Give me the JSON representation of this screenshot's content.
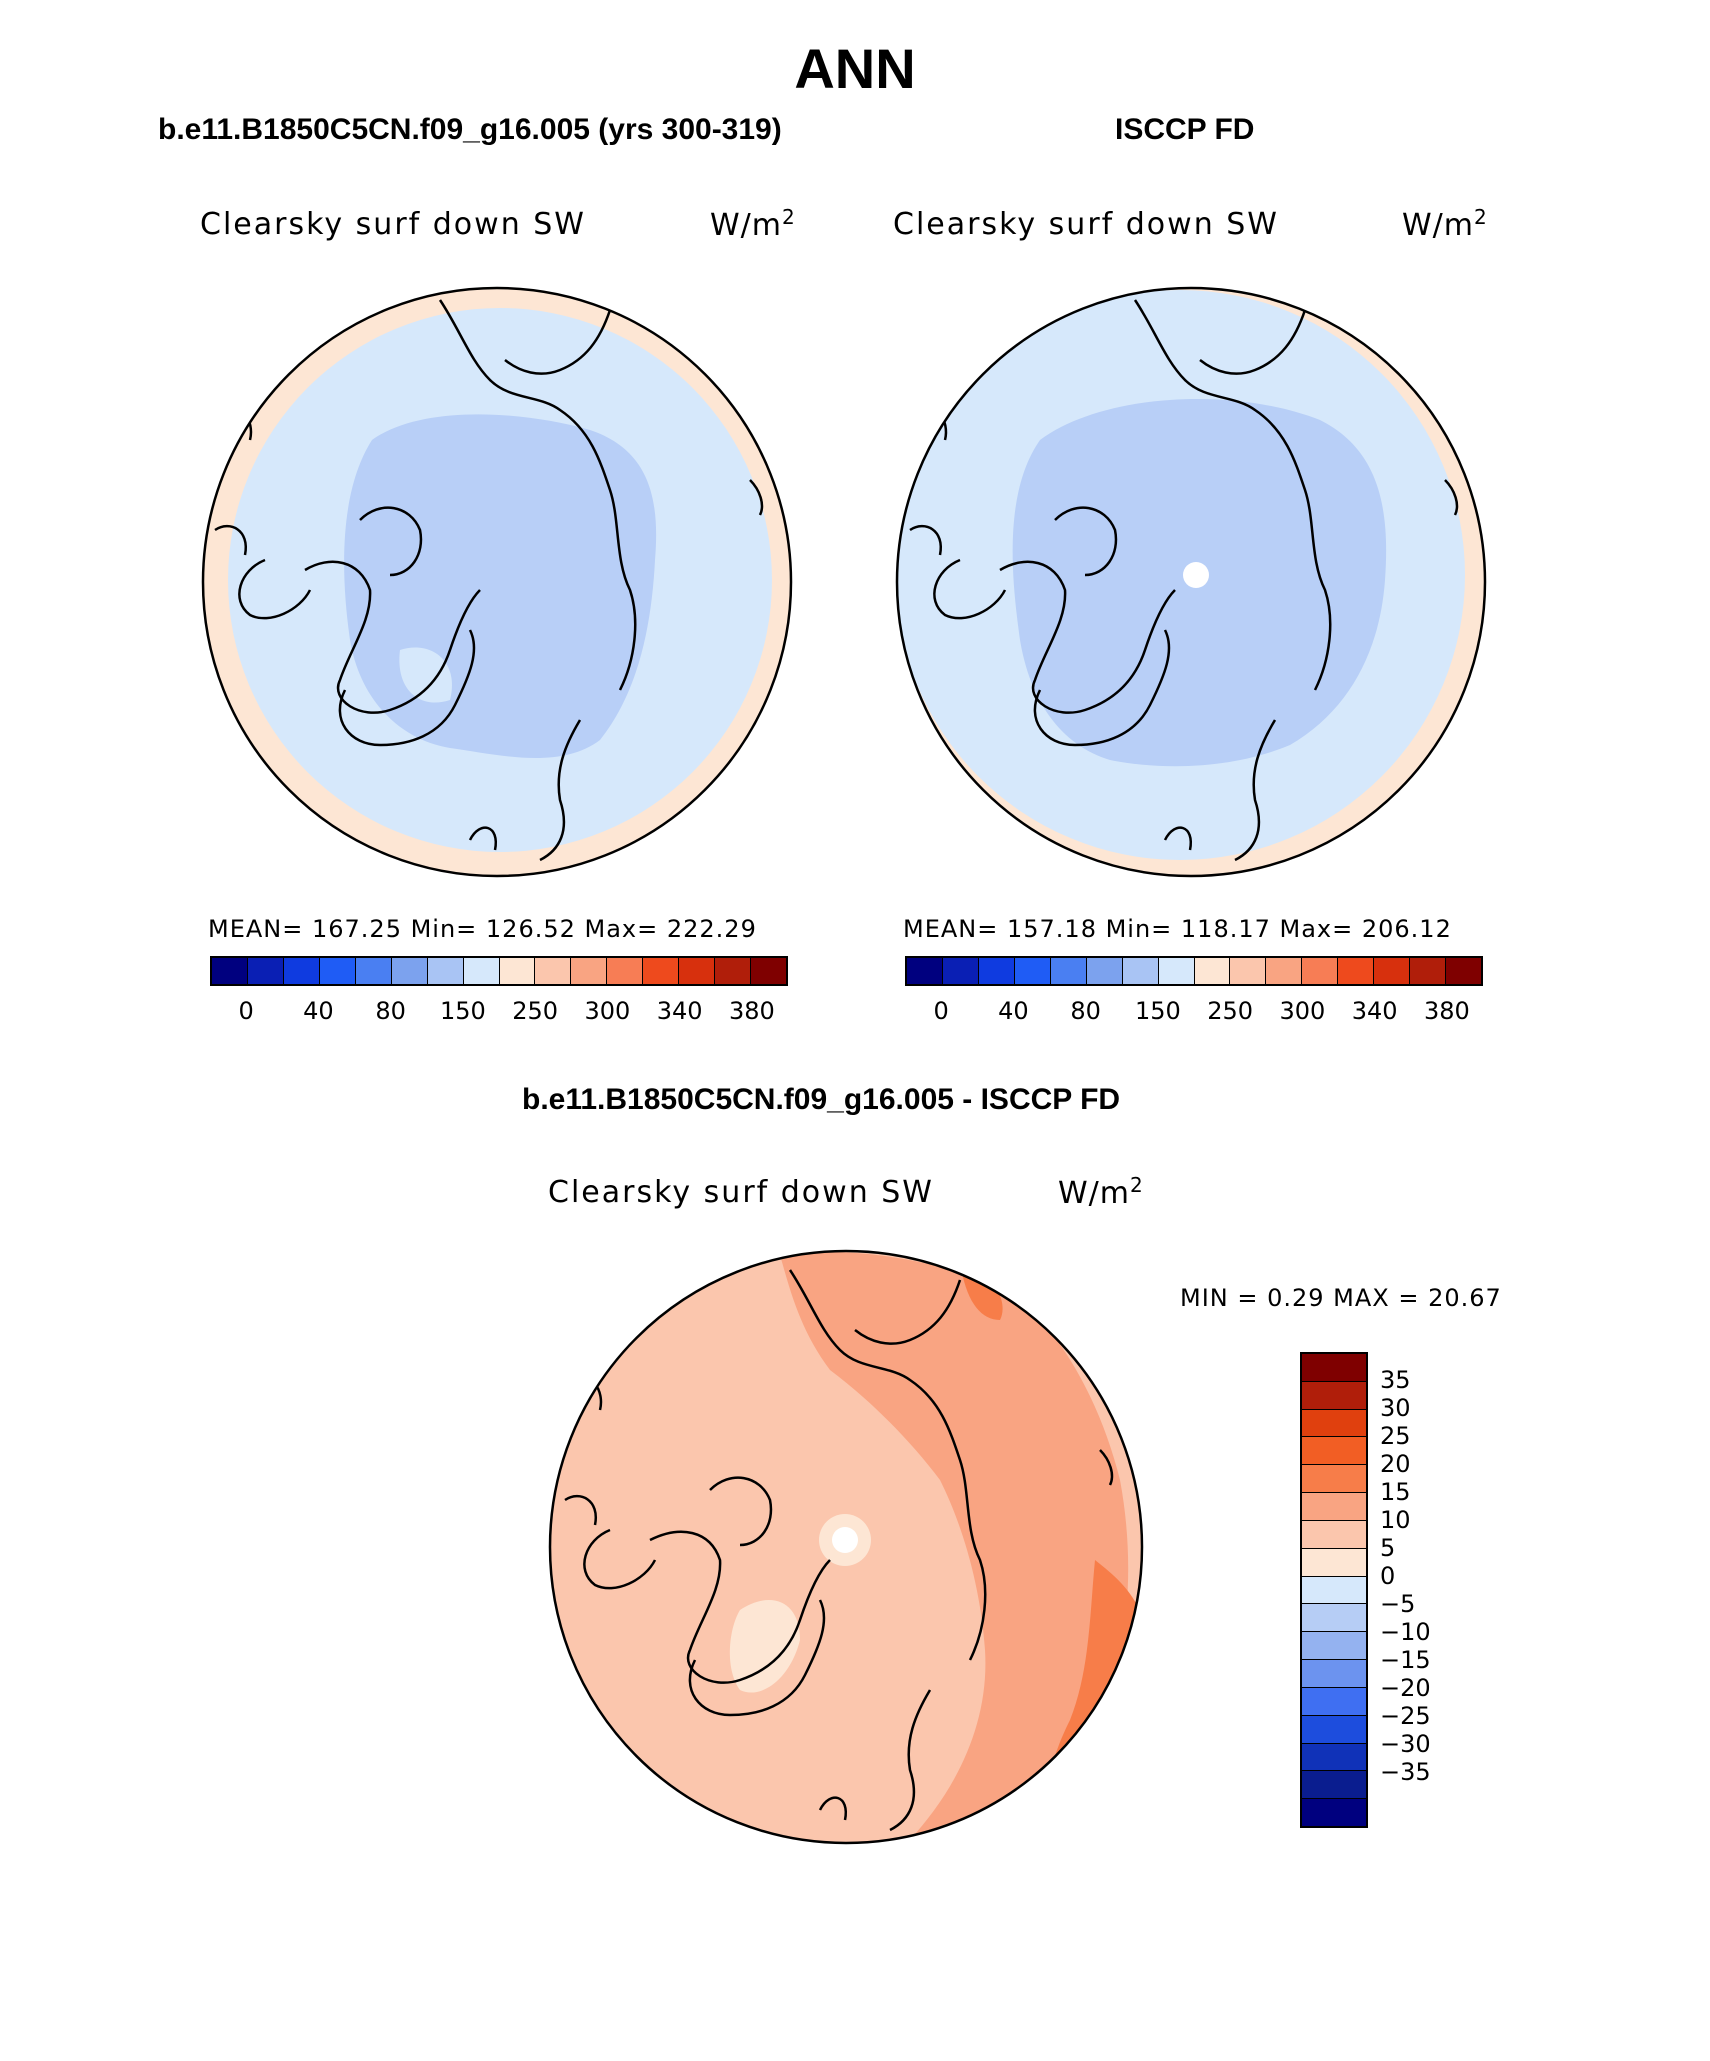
{
  "figure": {
    "title": "ANN"
  },
  "panels": [
    {
      "case_title": "b.e11.B1850C5CN.f09_g16.005 (yrs 300-319)",
      "variable": "Clearsky surf down SW",
      "unit_base": "W/m",
      "unit_exp": "2",
      "stats": "MEAN= 167.25   Min= 126.52   Max= 222.29"
    },
    {
      "case_title": "ISCCP FD",
      "variable": "Clearsky surf down SW",
      "unit_base": "W/m",
      "unit_exp": "2",
      "stats": "MEAN= 157.18   Min= 118.17   Max= 206.12"
    },
    {
      "case_title": "b.e11.B1850C5CN.f09_g16.005 - ISCCP FD",
      "variable": "Clearsky surf down SW",
      "unit_base": "W/m",
      "unit_exp": "2",
      "stats": "MIN =    0.29 MAX =   20.67"
    }
  ],
  "abs_colorbar": {
    "colors": [
      "#00007f",
      "#0a1fb4",
      "#0f3be0",
      "#1f5cf5",
      "#4a7ff2",
      "#7ca2ee",
      "#a9c4f4",
      "#d6e8fb",
      "#fde6d4",
      "#fbc6ad",
      "#f9a482",
      "#f77d55",
      "#ee4a1d",
      "#d7300d",
      "#b01e0a",
      "#7f0000"
    ],
    "labels": [
      "0",
      "40",
      "80",
      "150",
      "250",
      "300",
      "340",
      "380"
    ]
  },
  "diff_colorbar": {
    "colors": [
      "#7f0000",
      "#b01e0a",
      "#e0400e",
      "#f25e24",
      "#f77d49",
      "#f9a482",
      "#fbc6ad",
      "#fde6d4",
      "#d6e8fb",
      "#b6cdf5",
      "#94b2f0",
      "#6c93ef",
      "#3f6ff2",
      "#1d4ddd",
      "#1032b8",
      "#0a1d8f",
      "#00007f"
    ],
    "labels": [
      "35",
      "30",
      "25",
      "20",
      "15",
      "10",
      "5",
      "0",
      "−5",
      "−10",
      "−15",
      "−20",
      "−25",
      "−30",
      "−35"
    ]
  },
  "maps": {
    "panel1": {
      "rim_color": "#fde6d4",
      "outer_color": "#d6e8fb",
      "inner_color": "#b8cff7",
      "pole_missing": false
    },
    "panel2": {
      "rim_color": "#fde6d4",
      "outer_color": "#d6e8fb",
      "inner_color": "#b8cff7",
      "pole_missing": true
    },
    "panel3": {
      "base_color": "#fbc6ad",
      "mid_color": "#f9a482",
      "high_color": "#f77d49",
      "low_color": "#fde6d4",
      "pole_missing": true
    }
  }
}
